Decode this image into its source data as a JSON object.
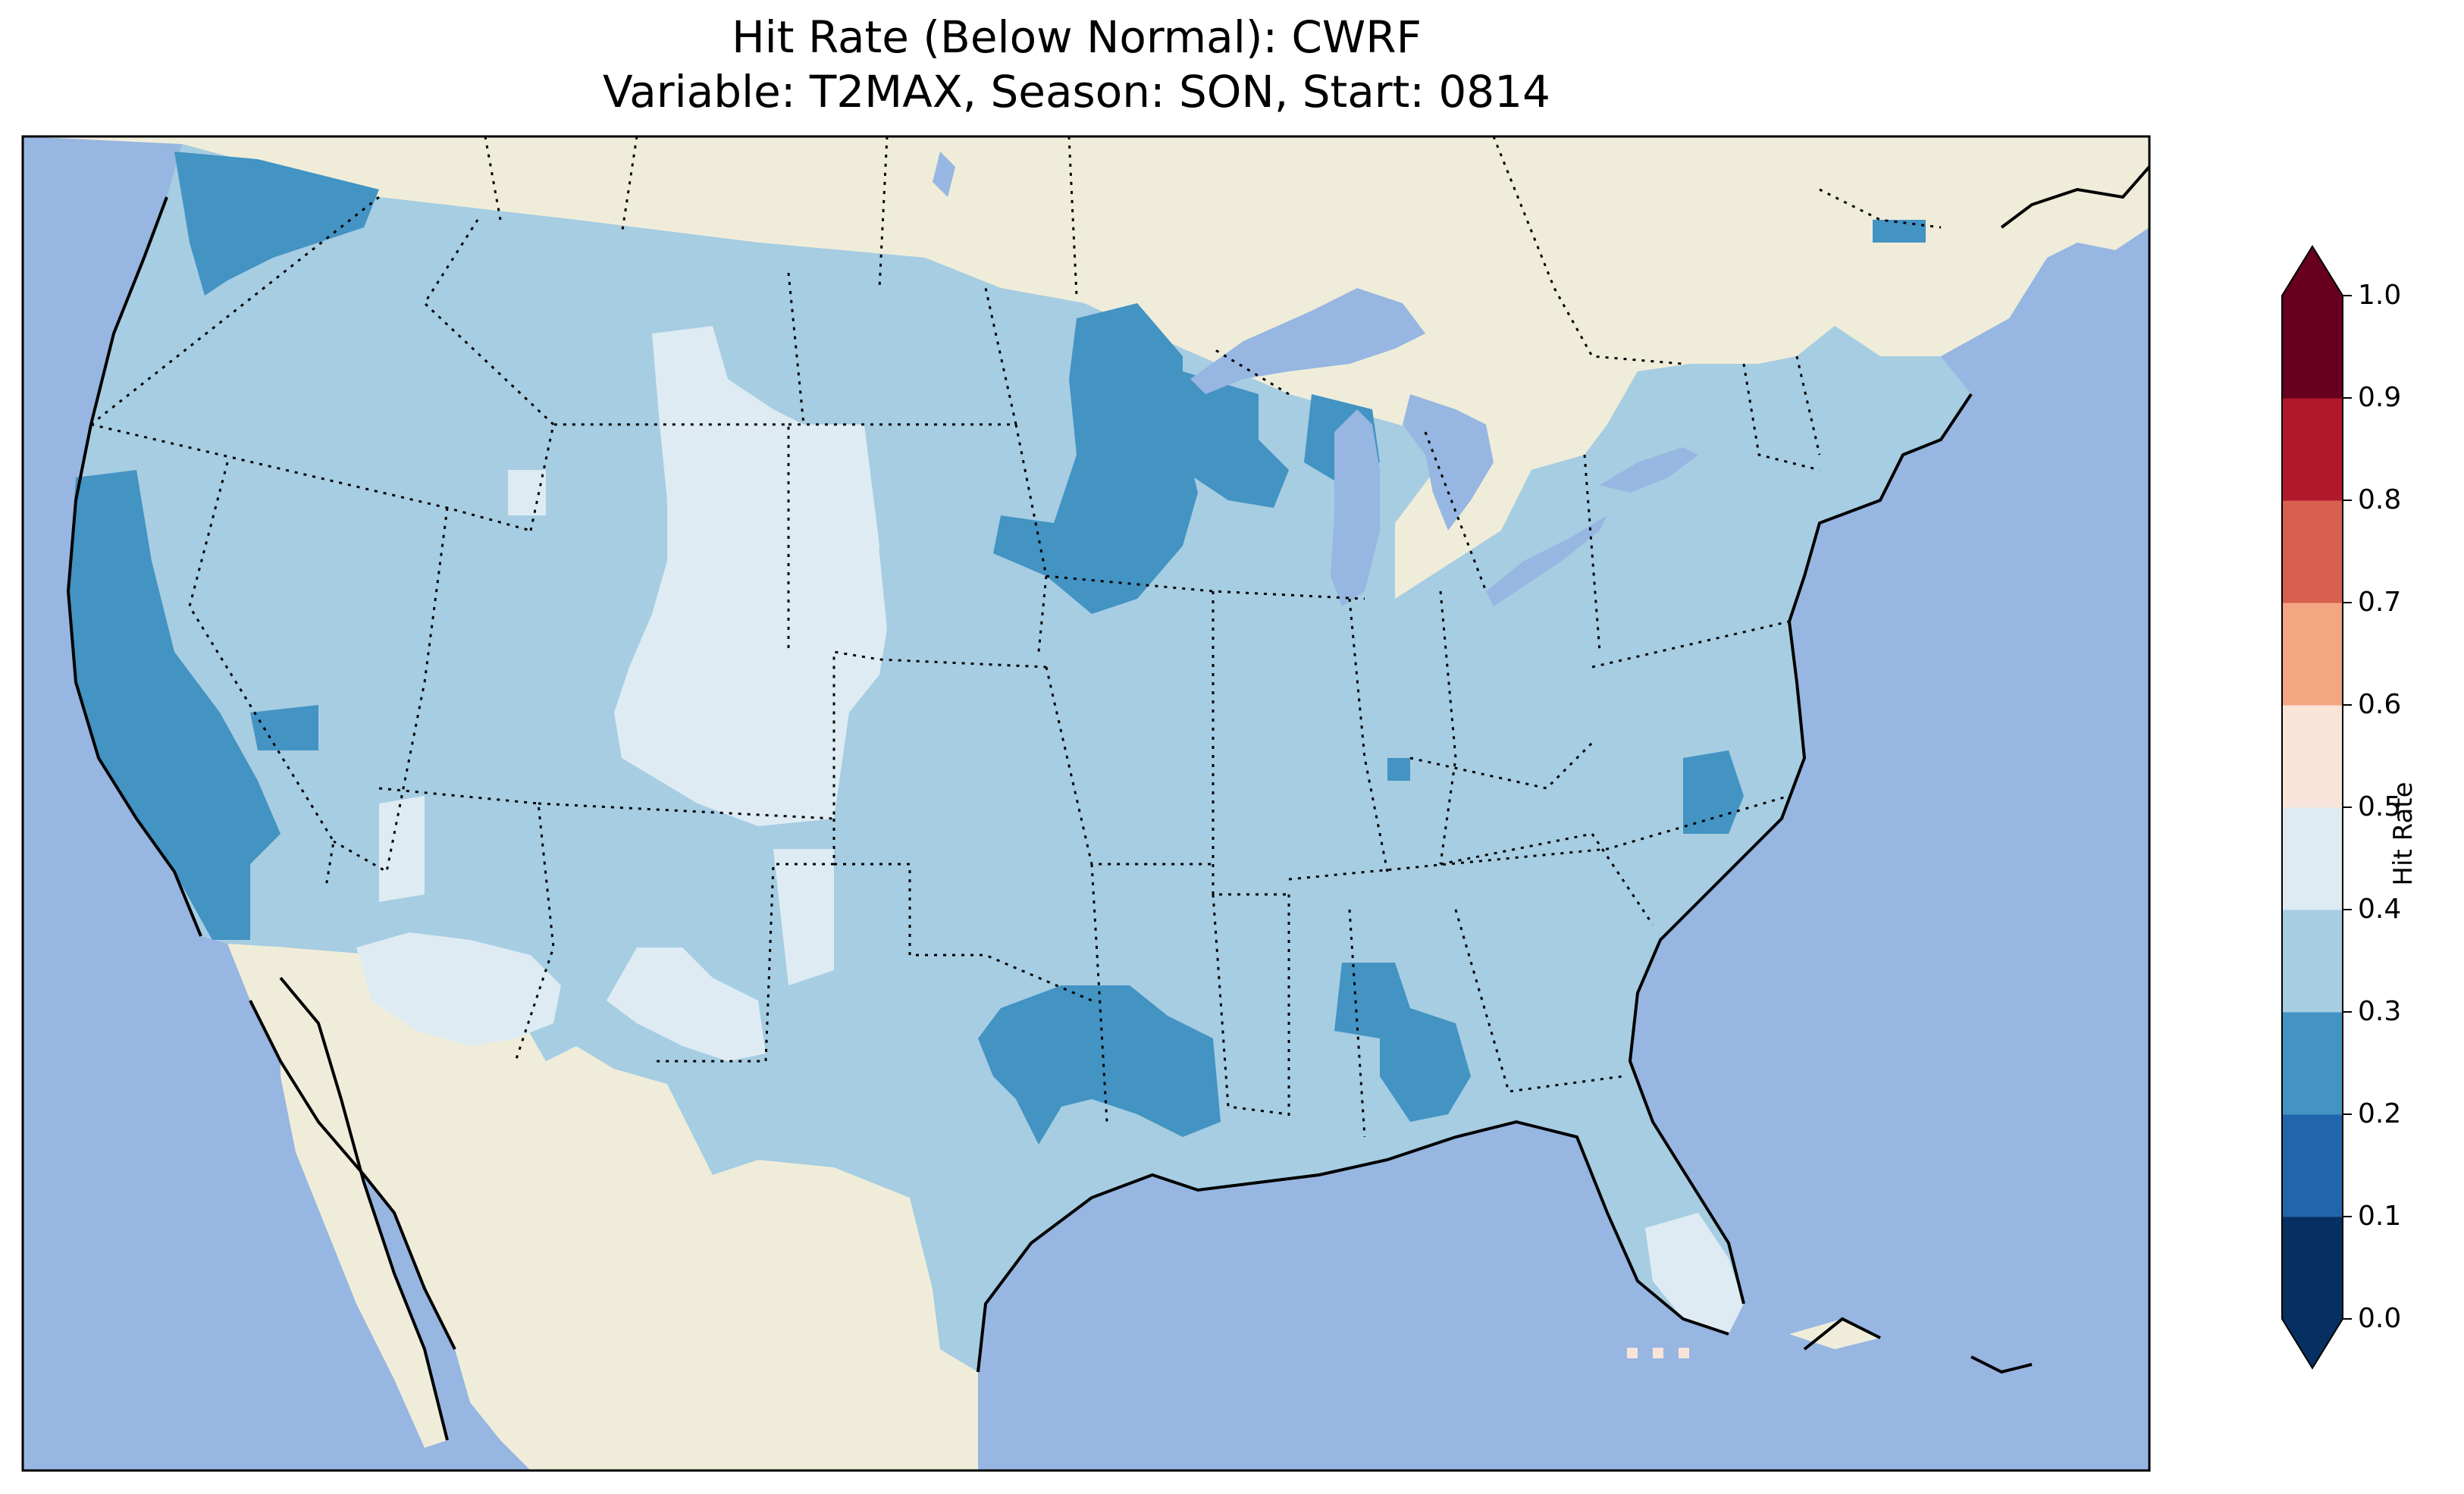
{
  "title": {
    "line1": "Hit Rate (Below Normal): CWRF",
    "line2": "Variable: T2MAX, Season: SON, Start: 0814"
  },
  "colors": {
    "ocean": "#97b6e1",
    "land": "#efedda",
    "lakes": "#97b6e1"
  },
  "colorbar": {
    "label": "Hit Rate",
    "ticks": [
      "0.0",
      "0.1",
      "0.2",
      "0.3",
      "0.4",
      "0.5",
      "0.6",
      "0.7",
      "0.8",
      "0.9",
      "1.0"
    ],
    "extend": "both",
    "bins": [
      {
        "range": [
          0.0,
          0.1
        ],
        "color": "#053061"
      },
      {
        "range": [
          0.1,
          0.2
        ],
        "color": "#2166ac"
      },
      {
        "range": [
          0.2,
          0.3
        ],
        "color": "#4393c3"
      },
      {
        "range": [
          0.3,
          0.4
        ],
        "color": "#a6cde2"
      },
      {
        "range": [
          0.4,
          0.5
        ],
        "color": "#deebf3"
      },
      {
        "range": [
          0.5,
          0.6
        ],
        "color": "#f9e4d9"
      },
      {
        "range": [
          0.6,
          0.7
        ],
        "color": "#f4a582"
      },
      {
        "range": [
          0.7,
          0.8
        ],
        "color": "#d6604d"
      },
      {
        "range": [
          0.8,
          0.9
        ],
        "color": "#b2182b"
      },
      {
        "range": [
          0.9,
          1.0
        ],
        "color": "#67001f"
      }
    ]
  },
  "map_data": {
    "domain": "CONUS",
    "dominant_value_range": [
      0.3,
      0.4
    ],
    "regions": [
      {
        "name": "Most of CONUS",
        "value_range": [
          0.3,
          0.4
        ]
      },
      {
        "name": "Western Washington",
        "value_range": [
          0.2,
          0.3
        ]
      },
      {
        "name": "California",
        "value_range": [
          0.2,
          0.3
        ]
      },
      {
        "name": "Minnesota / Wisconsin",
        "value_range": [
          0.2,
          0.3
        ]
      },
      {
        "name": "Northeast Texas / Louisiana",
        "value_range": [
          0.2,
          0.3
        ]
      },
      {
        "name": "Alabama / Mississippi",
        "value_range": [
          0.2,
          0.3
        ]
      },
      {
        "name": "Eastern North Carolina",
        "value_range": [
          0.2,
          0.3
        ]
      },
      {
        "name": "Wyoming / Colorado / Nebraska",
        "value_range": [
          0.4,
          0.5
        ]
      },
      {
        "name": "Southern Arizona",
        "value_range": [
          0.4,
          0.5
        ]
      },
      {
        "name": "Southern New Mexico",
        "value_range": [
          0.4,
          0.5
        ]
      },
      {
        "name": "South Florida",
        "value_range": [
          0.4,
          0.5
        ]
      }
    ]
  }
}
